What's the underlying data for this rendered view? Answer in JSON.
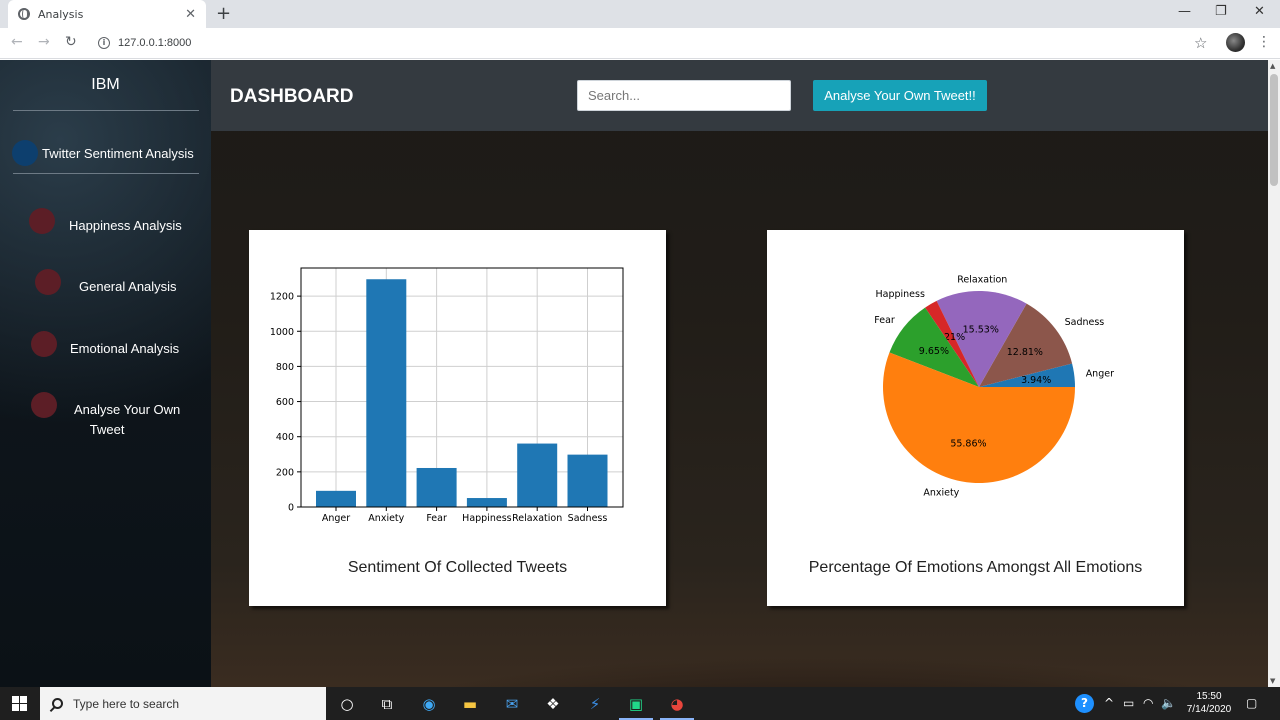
{
  "browser": {
    "tab_title": "Analysis",
    "tab_close": "✕",
    "new_tab": "+",
    "url": "127.0.0.1:8000",
    "controls": {
      "minimize": "—",
      "maximize": "❐",
      "close": "✕"
    }
  },
  "sidebar": {
    "brand": "IBM",
    "main_item": "Twitter Sentiment Analysis",
    "items": [
      {
        "label": "Happiness Analysis"
      },
      {
        "label": "General Analysis"
      },
      {
        "label": "Emotional Analysis"
      },
      {
        "label_line1": "Analyse Your Own",
        "label_line2": "Tweet"
      }
    ]
  },
  "topbar": {
    "title": "DASHBOARD",
    "search_placeholder": "Search...",
    "button_label": "Analyse Your Own Tweet!!"
  },
  "cards": [
    {
      "title": "Sentiment Of Collected Tweets"
    },
    {
      "title": "Percentage Of Emotions Amongst All Emotions"
    }
  ],
  "chart_data": [
    {
      "type": "bar",
      "categories": [
        "Anger",
        "Anxiety",
        "Fear",
        "Happiness",
        "Relaxation",
        "Sadness"
      ],
      "values": [
        92,
        1296,
        222,
        51,
        361,
        298
      ],
      "yticks": [
        0,
        200,
        400,
        600,
        800,
        1000,
        1200
      ],
      "ylim": [
        0,
        1360
      ],
      "grid": true,
      "color": "#1f77b4"
    },
    {
      "type": "pie",
      "slices": [
        {
          "label": "Anger",
          "pct": 3.94,
          "pct_label": "3.94%",
          "color": "#1f77b4"
        },
        {
          "label": "Sadness",
          "pct": 12.81,
          "pct_label": "12.81%",
          "color": "#8c564b"
        },
        {
          "label": "Relaxation",
          "pct": 15.53,
          "pct_label": "15.53%",
          "color": "#9467bd"
        },
        {
          "label": "Happiness",
          "pct": 2.21,
          "pct_label": "2.21%",
          "color": "#d62728"
        },
        {
          "label": "Fear",
          "pct": 9.65,
          "pct_label": "9.65%",
          "color": "#2ca02c"
        },
        {
          "label": "Anxiety",
          "pct": 55.86,
          "pct_label": "55.86%",
          "color": "#ff7f0e"
        }
      ]
    }
  ],
  "taskbar": {
    "search_text": "Type here to search",
    "time": "15:50",
    "date": "7/14/2020"
  }
}
